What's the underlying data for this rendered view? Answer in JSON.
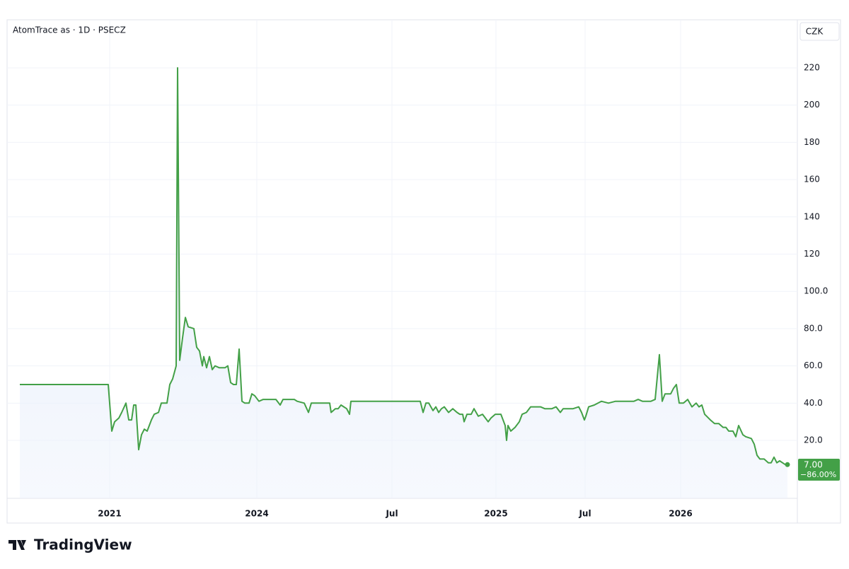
{
  "chart_data": {
    "type": "line",
    "title": "AtomTrace as · 1D · PSECZ",
    "currency": "CZK",
    "brand": "TradingView",
    "last_price_label": "7.00",
    "change_label": "−86.00%",
    "series": [
      {
        "name": "AtomTrace as",
        "color": "#43a047",
        "x": [
          0,
          125,
          127,
          130,
          134,
          140,
          144,
          150,
          154,
          158,
          161,
          164,
          168,
          172,
          176,
          180,
          186,
          190,
          196,
          200,
          208,
          212,
          216,
          221,
          223,
          226,
          230,
          234,
          238,
          246,
          250,
          254,
          258,
          260,
          264,
          268,
          272,
          276,
          282,
          290,
          294,
          298,
          302,
          306,
          310,
          314,
          318,
          324,
          328,
          332,
          338,
          344,
          352,
          362,
          368,
          372,
          382,
          388,
          392,
          402,
          408,
          412,
          424,
          438,
          440,
          446,
          450,
          454,
          458,
          462,
          466,
          468,
          492,
          532,
          556,
          566,
          570,
          574,
          578,
          584,
          588,
          592,
          596,
          600,
          606,
          612,
          618,
          622,
          626,
          628,
          632,
          638,
          642,
          648,
          654,
          658,
          662,
          666,
          672,
          680,
          684,
          686,
          688,
          690,
          694,
          700,
          706,
          710,
          716,
          722,
          736,
          742,
          752,
          758,
          764,
          768,
          782,
          790,
          794,
          798,
          800,
          804,
          812,
          822,
          832,
          842,
          858,
          868,
          874,
          880,
          892,
          898,
          904,
          908,
          912,
          920,
          924,
          928,
          932,
          938,
          944,
          950,
          956,
          960,
          964,
          968,
          976,
          982,
          988,
          994,
          998,
          1002,
          1008,
          1012,
          1016,
          1022,
          1026,
          1034,
          1038,
          1042,
          1046,
          1052,
          1058,
          1062,
          1066,
          1070,
          1074,
          1078,
          1082,
          1085
        ],
        "values": [
          50,
          50,
          40,
          25,
          30,
          32,
          35,
          40,
          31,
          31,
          39,
          39,
          15,
          23,
          26,
          25,
          31,
          34,
          35,
          40,
          40,
          50,
          53,
          60,
          220,
          63,
          75,
          86,
          81,
          80,
          70,
          68,
          60,
          65,
          59,
          65,
          58,
          60,
          59,
          59,
          60,
          51,
          50,
          50,
          69,
          41,
          40,
          40,
          45,
          44,
          41,
          42,
          42,
          42,
          39,
          42,
          42,
          42,
          41,
          40,
          35,
          40,
          40,
          40,
          35,
          37,
          37,
          39,
          38,
          37,
          34,
          41,
          41,
          41,
          41,
          41,
          35,
          40,
          40,
          36,
          38,
          35,
          37,
          38,
          35,
          37,
          35,
          34,
          34,
          30,
          34,
          34,
          37,
          33,
          34,
          32,
          30,
          32,
          34,
          34,
          30,
          28,
          20,
          28,
          25,
          27,
          30,
          34,
          35,
          38,
          38,
          37,
          37,
          38,
          35,
          37,
          37,
          38,
          35,
          31,
          33,
          38,
          39,
          41,
          40,
          41,
          41,
          41,
          42,
          41,
          41,
          42,
          66,
          41,
          45,
          45,
          48,
          50,
          40,
          40,
          42,
          38,
          40,
          38,
          39,
          34,
          31,
          29,
          29,
          27,
          27,
          25,
          25,
          22,
          28,
          23,
          22,
          21,
          18,
          12,
          10,
          10,
          8,
          8,
          11,
          8,
          9,
          8,
          7,
          7
        ]
      }
    ],
    "xlim": [
      -18,
      1099
    ],
    "xticks": [
      {
        "value": 127,
        "label": "2021"
      },
      {
        "value": 335,
        "label": "2024"
      },
      {
        "value": 526,
        "label": "Jul"
      },
      {
        "value": 673,
        "label": "2025"
      },
      {
        "value": 799,
        "label": "Jul"
      },
      {
        "value": 934,
        "label": "2026"
      }
    ],
    "ylim": [
      -11.1,
      245.8
    ],
    "yticks": [
      {
        "value": 20,
        "label": "20.0"
      },
      {
        "value": 40,
        "label": "40.0"
      },
      {
        "value": 60,
        "label": "60.0"
      },
      {
        "value": 80,
        "label": "80.0"
      },
      {
        "value": 100,
        "label": "100.0"
      },
      120,
      140,
      160,
      180,
      200,
      220
    ],
    "grid": true
  }
}
